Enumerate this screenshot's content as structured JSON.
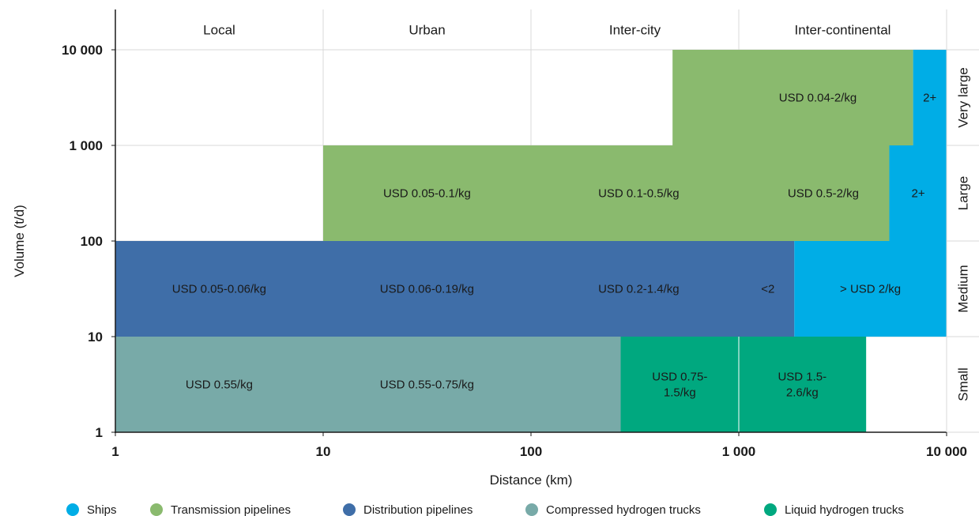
{
  "chart_data": {
    "type": "heatmap",
    "title": "",
    "xlabel": "Distance (km)",
    "ylabel": "Volume (t/d)",
    "x_scale": "log",
    "y_scale": "log",
    "xlim": [
      1,
      10000
    ],
    "ylim": [
      1,
      10000
    ],
    "x_ticks": [
      {
        "value": 1,
        "label": "1"
      },
      {
        "value": 10,
        "label": "10"
      },
      {
        "value": 100,
        "label": "100"
      },
      {
        "value": 1000,
        "label": "1 000"
      },
      {
        "value": 10000,
        "label": "10 000"
      }
    ],
    "y_ticks": [
      {
        "value": 1,
        "label": "1"
      },
      {
        "value": 10,
        "label": "10"
      },
      {
        "value": 100,
        "label": "100"
      },
      {
        "value": 1000,
        "label": "1 000"
      },
      {
        "value": 10000,
        "label": "10 000"
      }
    ],
    "distance_categories": [
      {
        "label": "Local",
        "x_range": [
          1,
          10
        ]
      },
      {
        "label": "Urban",
        "x_range": [
          10,
          100
        ]
      },
      {
        "label": "Inter-city",
        "x_range": [
          100,
          1000
        ]
      },
      {
        "label": "Inter-continental",
        "x_range": [
          1000,
          10000
        ]
      }
    ],
    "volume_categories": [
      {
        "label": "Very large",
        "y_range": [
          1000,
          10000
        ]
      },
      {
        "label": "Large",
        "y_range": [
          100,
          1000
        ]
      },
      {
        "label": "Medium",
        "y_range": [
          10,
          100
        ]
      },
      {
        "label": "Small",
        "y_range": [
          1,
          10
        ]
      }
    ],
    "series": [
      {
        "name": "Ships",
        "color": "#00ade6"
      },
      {
        "name": "Transmission pipelines",
        "color": "#8aba6e"
      },
      {
        "name": "Distribution pipelines",
        "color": "#3f6ea8"
      },
      {
        "name": "Compressed hydrogen trucks",
        "color": "#78aaa8"
      },
      {
        "name": "Liquid hydrogen trucks",
        "color": "#00a87f"
      }
    ],
    "cells": [
      {
        "series": "Transmission pipelines",
        "x_range": [
          480,
          6900
        ],
        "y_range": [
          1000,
          10000
        ],
        "label_lines": [
          "USD 0.04-2/kg"
        ],
        "label_x": 2400
      },
      {
        "series": "Ships",
        "x_range": [
          6900,
          10000
        ],
        "y_range": [
          1000,
          10000
        ],
        "label_lines": [
          "2+"
        ],
        "label_x": 8300
      },
      {
        "series": "Transmission pipelines",
        "x_range": [
          10,
          5300
        ],
        "y_range": [
          100,
          1000
        ],
        "label_lines": [
          "USD 0.05-0.1/kg"
        ],
        "label_x": 31.6
      },
      {
        "series": "Transmission pipelines",
        "x_range": [
          10,
          5300
        ],
        "y_range": [
          100,
          1000
        ],
        "label_lines": [
          "USD 0.1-0.5/kg"
        ],
        "label_x": 330
      },
      {
        "series": "Transmission pipelines",
        "x_range": [
          10,
          5300
        ],
        "y_range": [
          100,
          1000
        ],
        "label_lines": [
          "USD 0.5-2/kg"
        ],
        "label_x": 2550
      },
      {
        "series": "Ships",
        "x_range": [
          5300,
          10000
        ],
        "y_range": [
          100,
          1000
        ],
        "label_lines": [
          "2+"
        ],
        "label_x": 7300
      },
      {
        "series": "Distribution pipelines",
        "x_range": [
          1,
          1850
        ],
        "y_range": [
          10,
          100
        ],
        "label_lines": [
          "USD 0.05-0.06/kg"
        ],
        "label_x": 3.16
      },
      {
        "series": "Distribution pipelines",
        "x_range": [
          1,
          1850
        ],
        "y_range": [
          10,
          100
        ],
        "label_lines": [
          "USD 0.06-0.19/kg"
        ],
        "label_x": 31.6
      },
      {
        "series": "Distribution pipelines",
        "x_range": [
          1,
          1850
        ],
        "y_range": [
          10,
          100
        ],
        "label_lines": [
          "USD 0.2-1.4/kg"
        ],
        "label_x": 330
      },
      {
        "series": "Distribution pipelines",
        "x_range": [
          1,
          1850
        ],
        "y_range": [
          10,
          100
        ],
        "label_lines": [
          "<2"
        ],
        "label_x": 1380
      },
      {
        "series": "Ships",
        "x_range": [
          1850,
          10000
        ],
        "y_range": [
          10,
          100
        ],
        "label_lines": [
          "> USD 2/kg"
        ],
        "label_x": 4300
      },
      {
        "series": "Compressed hydrogen trucks",
        "x_range": [
          1,
          270
        ],
        "y_range": [
          1,
          10
        ],
        "label_lines": [
          "USD 0.55/kg"
        ],
        "label_x": 3.16
      },
      {
        "series": "Compressed hydrogen trucks",
        "x_range": [
          1,
          270
        ],
        "y_range": [
          1,
          10
        ],
        "label_lines": [
          "USD 0.55-0.75/kg"
        ],
        "label_x": 31.6
      },
      {
        "series": "Liquid hydrogen trucks",
        "x_range": [
          270,
          1000
        ],
        "y_range": [
          1,
          10
        ],
        "label_lines": [
          "USD 0.75-",
          "1.5/kg"
        ],
        "label_x": 520
      },
      {
        "series": "Liquid hydrogen trucks",
        "x_range": [
          1000,
          4100
        ],
        "y_range": [
          1,
          10
        ],
        "label_lines": [
          "USD 1.5-",
          "2.6/kg"
        ],
        "label_x": 2020
      }
    ],
    "legend_position": "bottom"
  }
}
